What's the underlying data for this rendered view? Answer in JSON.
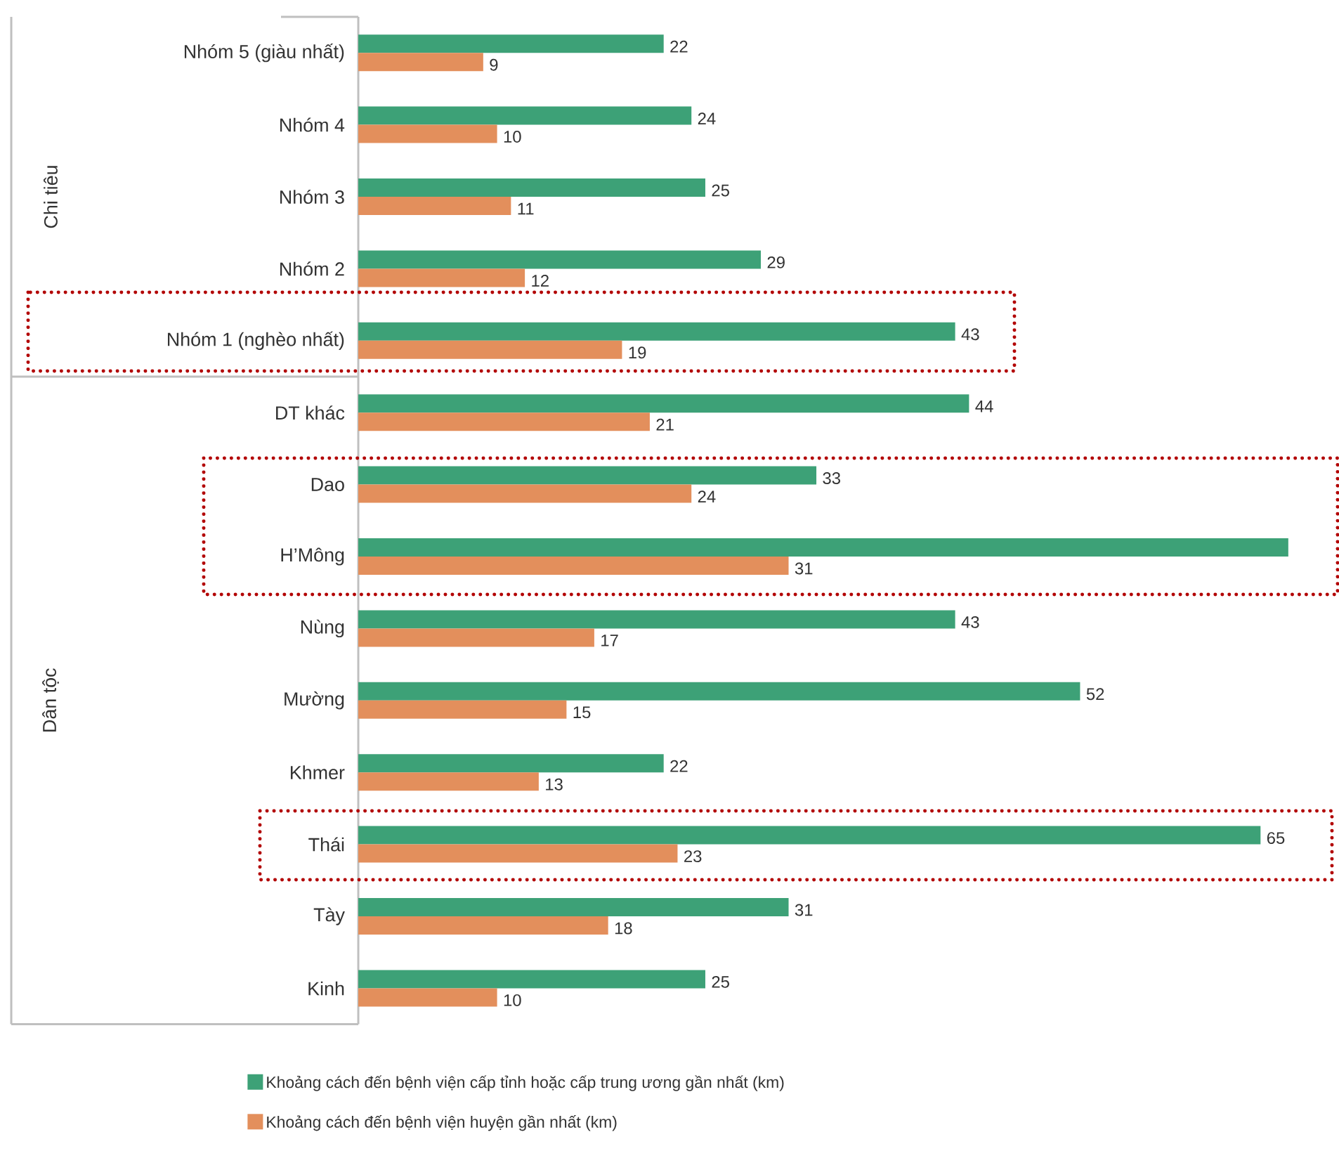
{
  "chart_data": {
    "type": "bar",
    "orientation": "horizontal",
    "categories": [
      "Nhóm 5 (giàu nhất)",
      "Nhóm 4",
      "Nhóm 3",
      "Nhóm 2",
      "Nhóm 1 (nghèo nhất)",
      "DT khác",
      "Dao",
      "H’Mông",
      "Nùng",
      "Mường",
      "Khmer",
      "Thái",
      "Tày",
      "Kinh"
    ],
    "series": [
      {
        "name": "Khoảng cách đến bệnh viện cấp tỉnh hoặc cấp trung ương gần nhất (km)",
        "color": "#3da177",
        "values": [
          22,
          24,
          25,
          29,
          43,
          44,
          33,
          67,
          43,
          52,
          22,
          65,
          31,
          25
        ],
        "value_labels": [
          "22",
          "24",
          "25",
          "29",
          "43",
          "44",
          "33",
          null,
          "43",
          "52",
          "22",
          "65",
          "31",
          "25"
        ]
      },
      {
        "name": "Khoảng cách đến bệnh viện huyện gần nhất (km)",
        "color": "#e38f5c",
        "values": [
          9,
          10,
          11,
          12,
          19,
          21,
          24,
          31,
          17,
          15,
          13,
          23,
          18,
          10
        ],
        "value_labels": [
          "9",
          "10",
          "11",
          "12",
          "19",
          "21",
          "24",
          "31",
          "17",
          "15",
          "13",
          "23",
          "18",
          "10"
        ]
      }
    ],
    "annotations": [
      "Chi tiêu",
      "Dân tộc"
    ],
    "tick_labels": "y",
    "grid": false,
    "legend": "bottom"
  }
}
